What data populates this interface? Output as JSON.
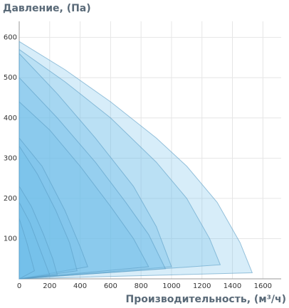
{
  "chart_data": {
    "type": "area",
    "title": "Давление, (Па)",
    "x_label": "Производительность, (м³/ч)",
    "xlim": [
      0,
      1720
    ],
    "ylim": [
      0,
      640
    ],
    "xticks": [
      0,
      200,
      400,
      600,
      800,
      1000,
      1200,
      1400,
      1600
    ],
    "yticks": [
      100,
      200,
      300,
      400,
      500,
      600
    ],
    "grid": true,
    "series": [
      {
        "color": "#6fbde8",
        "x": [
          0,
          300,
          600,
          900,
          1100,
          1300,
          1450,
          1530
        ],
        "values": [
          590,
          520,
          440,
          350,
          280,
          190,
          90,
          15
        ]
      },
      {
        "color": "#6fbde8",
        "x": [
          0,
          300,
          600,
          900,
          1100,
          1250,
          1320
        ],
        "values": [
          570,
          490,
          400,
          290,
          200,
          100,
          35
        ]
      },
      {
        "color": "#6fbde8",
        "x": [
          0,
          250,
          500,
          750,
          900,
          1000
        ],
        "values": [
          560,
          460,
          350,
          230,
          130,
          30
        ]
      },
      {
        "color": "#6fbde8",
        "x": [
          0,
          250,
          500,
          700,
          850,
          960
        ],
        "values": [
          500,
          400,
          290,
          190,
          110,
          25
        ]
      },
      {
        "color": "#6fbde8",
        "x": [
          0,
          200,
          400,
          600,
          750,
          850
        ],
        "values": [
          440,
          370,
          280,
          180,
          100,
          30
        ]
      },
      {
        "color": "#6fbde8",
        "x": [
          0,
          150,
          300,
          400,
          450
        ],
        "values": [
          350,
          280,
          170,
          80,
          30
        ]
      },
      {
        "color": "#6fbde8",
        "x": [
          0,
          120,
          240,
          330,
          380
        ],
        "values": [
          330,
          260,
          170,
          90,
          20
        ]
      },
      {
        "color": "#6fbde8",
        "x": [
          0,
          80,
          160,
          220,
          250
        ],
        "values": [
          230,
          180,
          110,
          50,
          10
        ]
      },
      {
        "color": "#6fbde8",
        "x": [
          0,
          70,
          140,
          200
        ],
        "values": [
          190,
          140,
          70,
          10
        ]
      },
      {
        "color": "#6fbde8",
        "x": [
          0,
          50,
          100
        ],
        "values": [
          150,
          90,
          20
        ]
      }
    ]
  }
}
